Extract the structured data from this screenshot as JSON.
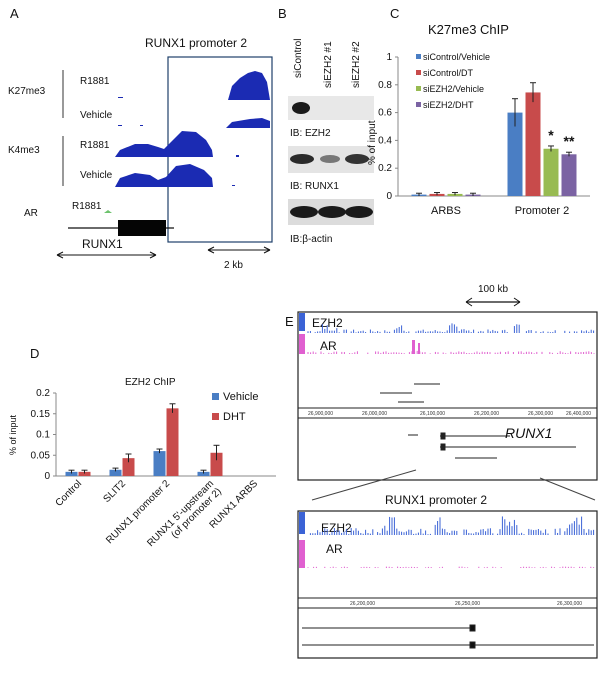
{
  "panels": {
    "a": "A",
    "b": "B",
    "c": "C",
    "d": "D",
    "e": "E"
  },
  "panel_a": {
    "title": "RUNX1 promoter 2",
    "marks": [
      "K27me3",
      "K4me3",
      "AR"
    ],
    "conditions": [
      "R1881",
      "Vehicle",
      "R1881",
      "Vehicle",
      "R1881"
    ],
    "gene": "RUNX1",
    "scale": "2 kb"
  },
  "panel_b": {
    "lanes": [
      "siControl",
      "siEZH2 #1",
      "siEZH2 #2"
    ],
    "blots": [
      "IB: EZH2",
      "IB: RUNX1",
      "IB:β-actin"
    ]
  },
  "panel_e": {
    "scale": "100 kb",
    "tracks": [
      "EZH2",
      "AR"
    ],
    "gene": "RUNX1",
    "zoom_title": "RUNX1 promoter 2",
    "top_ticks": [
      "26,900,000",
      "26,000,000",
      "26,100,000",
      "26,200,000",
      "26,300,000",
      "26,400,000"
    ],
    "bottom_ticks": [
      "26,200,000",
      "26,250,000",
      "26,300,000"
    ]
  },
  "chart_data": [
    {
      "type": "bar",
      "title": "K27me3 ChIP",
      "ylabel": "% of input",
      "ylim": [
        0,
        1
      ],
      "yticks": [
        "0",
        "0.2",
        "0.4",
        "0.6",
        "0.8",
        "1"
      ],
      "categories": [
        "ARBS",
        "Promoter 2"
      ],
      "series": [
        {
          "name": "siControl/Vehicle",
          "color": "#4a7ec4",
          "values": [
            0.01,
            0.6
          ],
          "errors": [
            0.01,
            0.1
          ]
        },
        {
          "name": "siControl/DT",
          "color": "#c84b4b",
          "values": [
            0.015,
            0.745
          ],
          "errors": [
            0.01,
            0.07
          ]
        },
        {
          "name": "siEZH2/Vehicle",
          "color": "#98bb52",
          "values": [
            0.015,
            0.34
          ],
          "errors": [
            0.01,
            0.02
          ]
        },
        {
          "name": "siEZH2/DHT",
          "color": "#7b63a3",
          "values": [
            0.01,
            0.3
          ],
          "errors": [
            0.01,
            0.015
          ]
        }
      ],
      "annotations": [
        "*",
        "**"
      ],
      "legend": "top-left"
    },
    {
      "type": "bar",
      "title": "EZH2  ChIP",
      "ylabel": "% of input",
      "ylim": [
        0,
        0.2
      ],
      "yticks": [
        "0",
        "0.05",
        "0.1",
        "0.15",
        "0.2"
      ],
      "categories": [
        "Control",
        "SLIT2",
        "RUNX1 promoter 2",
        "RUNX1 5'-upstream\n(of promoter 2)",
        "RUNX1 ARBS"
      ],
      "series": [
        {
          "name": "Vehicle",
          "color": "#4a7ec4",
          "values": [
            0.01,
            0.015,
            0.06,
            0.01,
            0.0
          ],
          "errors": [
            0.004,
            0.004,
            0.005,
            0.004,
            0.0
          ]
        },
        {
          "name": "DHT",
          "color": "#c84b4b",
          "values": [
            0.01,
            0.043,
            0.163,
            0.056,
            0.0
          ],
          "errors": [
            0.004,
            0.01,
            0.011,
            0.018,
            0.0
          ]
        }
      ],
      "legend": "top-right"
    }
  ]
}
